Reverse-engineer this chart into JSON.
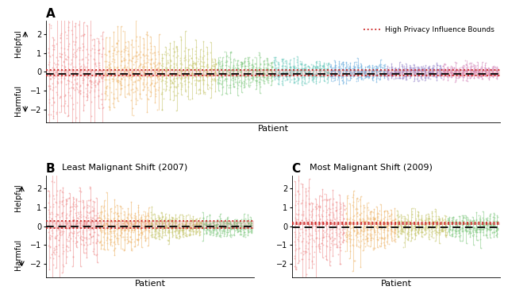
{
  "title_A": "A",
  "title_B": "B",
  "title_C": "C",
  "subtitle_B": "Least Malignant Shift (2007)",
  "subtitle_C": "Most Malignant Shift (2009)",
  "xlabel": "Patient",
  "ylabel_top": "Helpful",
  "ylabel_bottom": "Harmful",
  "legend_label": "High Privacy Influence Bounds",
  "ylim_A": [
    -2.7,
    2.7
  ],
  "ylim_BC": [
    -2.7,
    2.7
  ],
  "n_patients_A": 120,
  "n_patients_BC": 60,
  "n_seeds": 25,
  "color_cycle": [
    "#f09090",
    "#f0b870",
    "#c8c870",
    "#88cc88",
    "#70ccc0",
    "#70b0e0",
    "#a090d0",
    "#d890c0"
  ],
  "dashed_line_color": "#111111",
  "dashed_line_A": -0.1,
  "red_line_A_upper": 0.1,
  "red_line_A_lower": -0.2,
  "dashed_line_B": 0.0,
  "red_line_B_upper": 0.3,
  "red_line_B_lower": -0.1,
  "dashed_line_C": -0.05,
  "red_line_C_upper": 0.2,
  "red_line_C_lower": 0.1,
  "red_line_color": "#cc2222",
  "red_fill_alpha": 0.12,
  "dot_alpha": 0.55,
  "dot_size": 1.8,
  "line_alpha": 0.55,
  "line_width": 0.75,
  "seed": 42
}
